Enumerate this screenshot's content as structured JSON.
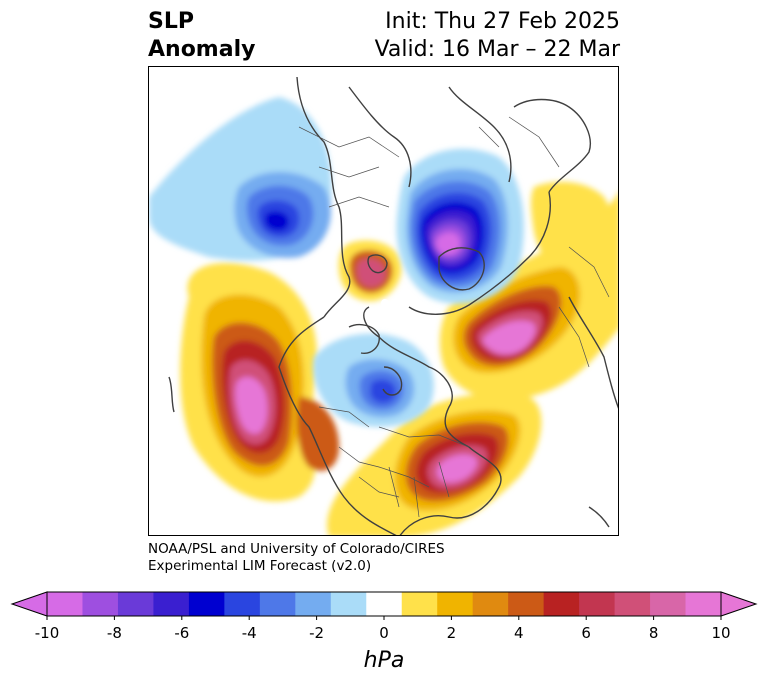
{
  "title": {
    "left_line1": "SLP",
    "left_line2": "Anomaly",
    "right_line1": "Init: Thu 27 Feb 2025",
    "right_line2": "Valid: 16 Mar – 22 Mar"
  },
  "credit": {
    "line1": "NOAA/PSL and University of Colorado/CIRES",
    "line2": "Experimental LIM Forecast (v2.0)"
  },
  "colorbar": {
    "unit": "hPa",
    "ticks": [
      "-10",
      "-8",
      "-6",
      "-4",
      "-2",
      "0",
      "2",
      "4",
      "6",
      "8",
      "10"
    ],
    "colors": [
      "#d66be6",
      "#9e4fe0",
      "#6a3ad8",
      "#3a1fd0",
      "#0000d0",
      "#2a45e0",
      "#4e78e8",
      "#74acf0",
      "#aadcf8",
      "#ffffff",
      "#ffe14a",
      "#f0b400",
      "#e08a10",
      "#cc5a16",
      "#b82222",
      "#c23650",
      "#d05078",
      "#d866a8",
      "#e676d6"
    ],
    "under_color": "#d66be6",
    "over_color": "#e676d6"
  }
}
